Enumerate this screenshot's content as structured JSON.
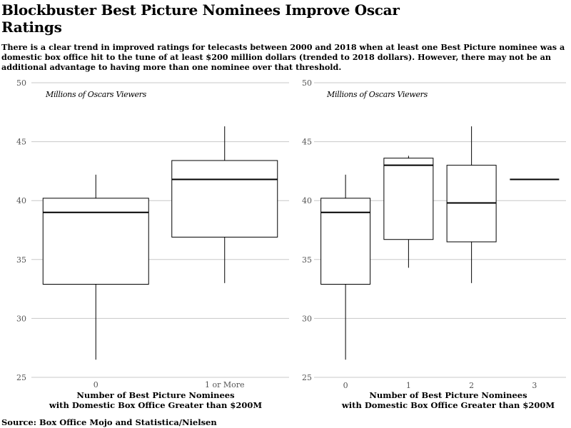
{
  "title": "Blockbuster Best Picture Nominees Improve Oscar Ratings",
  "subtitle": "There is a clear trend in improved ratings for telecasts between 2000 and 2018 when at least one Best Picture nominee was a domestic box office hit to the tune of at least $200 million dollars (trended to 2018 dollars). However, there may not be an additional advantage to having more than one nominee over that threshold.",
  "source": "Source: Box Office Mojo and Statistica/Nielsen",
  "chart_data": [
    {
      "type": "box",
      "ylabel": "Millions of Oscars Viewers",
      "xlabel_lines": [
        "Number of Best Picture Nominees",
        "with Domestic Box Office Greater than $200M"
      ],
      "ylim": [
        25,
        50
      ],
      "yticks": [
        25,
        30,
        35,
        40,
        45,
        50
      ],
      "grid": true,
      "categories": [
        "0",
        "1 or More"
      ],
      "boxes": [
        {
          "category": "0",
          "min": 26.5,
          "q1": 32.9,
          "median": 39.0,
          "q3": 40.2,
          "max": 42.2
        },
        {
          "category": "1 or More",
          "min": 33.0,
          "q1": 36.9,
          "median": 41.8,
          "q3": 43.4,
          "max": 46.3
        }
      ]
    },
    {
      "type": "box",
      "ylabel": "Millions of Oscars Viewers",
      "xlabel_lines": [
        "Number of Best Picture Nominees",
        "with Domestic Box Office Greater than $200M"
      ],
      "ylim": [
        25,
        50
      ],
      "yticks": [
        25,
        30,
        35,
        40,
        45,
        50
      ],
      "grid": true,
      "categories": [
        "0",
        "1",
        "2",
        "3"
      ],
      "boxes": [
        {
          "category": "0",
          "min": 26.5,
          "q1": 32.9,
          "median": 39.0,
          "q3": 40.2,
          "max": 42.2
        },
        {
          "category": "1",
          "min": 34.3,
          "q1": 36.7,
          "median": 43.0,
          "q3": 43.6,
          "max": 43.8
        },
        {
          "category": "2",
          "min": 33.0,
          "q1": 36.5,
          "median": 39.8,
          "q3": 43.0,
          "max": 46.3
        },
        {
          "category": "3",
          "min": 41.8,
          "q1": 41.8,
          "median": 41.8,
          "q3": 41.8,
          "max": 41.8
        }
      ]
    }
  ]
}
